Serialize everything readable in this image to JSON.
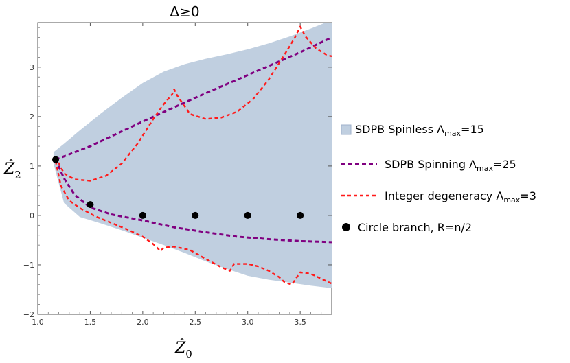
{
  "chart_data": {
    "type": "line",
    "title": "Δ≥0",
    "xlabel": "Ẑ",
    "xlabel_sub": "0",
    "ylabel": "Ẑ",
    "ylabel_sub": "2",
    "xlim": [
      1.0,
      3.8
    ],
    "ylim": [
      -2,
      3.9
    ],
    "x_ticks": [
      1.0,
      1.5,
      2.0,
      2.5,
      3.0,
      3.5
    ],
    "x_tick_labels": [
      "1.0",
      "1.5",
      "2.0",
      "2.5",
      "3.0",
      "3.5"
    ],
    "y_ticks": [
      -2,
      -1,
      0,
      1,
      2,
      3
    ],
    "y_tick_labels": [
      "−2",
      "−1",
      "0",
      "1",
      "2",
      "3"
    ],
    "legend_position": "right",
    "colors": {
      "region": "#c0cfe0",
      "spinning": "#800080",
      "integer": "#ff1a1a",
      "circle": "#000000"
    },
    "series": [
      {
        "key": "spinless",
        "kind": "area",
        "name": "SDPB Spinless Λ",
        "name_sub": "max",
        "name_suffix": "=15",
        "x": [
          1.15,
          1.25,
          1.4,
          1.6,
          1.8,
          2.0,
          2.2,
          2.4,
          2.6,
          2.8,
          3.0,
          3.2,
          3.4,
          3.6,
          3.8,
          3.8,
          3.6,
          3.4,
          3.2,
          3.0,
          2.8,
          2.6,
          2.4,
          2.2,
          2.0,
          1.8,
          1.6,
          1.4,
          1.25,
          1.15
        ],
        "y": [
          1.28,
          1.45,
          1.72,
          2.06,
          2.38,
          2.68,
          2.91,
          3.06,
          3.17,
          3.26,
          3.36,
          3.48,
          3.62,
          3.78,
          3.95,
          -1.47,
          -1.42,
          -1.36,
          -1.3,
          -1.22,
          -1.08,
          -0.93,
          -0.76,
          -0.6,
          -0.45,
          -0.3,
          -0.16,
          -0.03,
          0.25,
          1.05
        ]
      },
      {
        "key": "spinning_upper",
        "kind": "line",
        "name": "SDPB Spinning Λ",
        "name_sub": "max",
        "name_suffix": "=25",
        "x": [
          1.17,
          1.5,
          2.0,
          2.5,
          3.0,
          3.5,
          3.8
        ],
        "y": [
          1.13,
          1.4,
          1.9,
          2.38,
          2.84,
          3.3,
          3.6
        ]
      },
      {
        "key": "spinning_lower",
        "kind": "line",
        "x": [
          1.17,
          1.25,
          1.35,
          1.5,
          1.7,
          2.0,
          2.3,
          2.6,
          2.9,
          3.2,
          3.5,
          3.8
        ],
        "y": [
          1.13,
          0.75,
          0.42,
          0.16,
          0.02,
          -0.1,
          -0.24,
          -0.34,
          -0.43,
          -0.48,
          -0.52,
          -0.54
        ]
      },
      {
        "key": "integer_upper",
        "kind": "line",
        "name": "Integer degeneracy Λ",
        "name_sub": "max",
        "name_suffix": "=3",
        "x": [
          1.17,
          1.25,
          1.35,
          1.5,
          1.65,
          1.8,
          1.95,
          2.1,
          2.2,
          2.28,
          2.3,
          2.33,
          2.45,
          2.6,
          2.75,
          2.9,
          3.05,
          3.2,
          3.35,
          3.45,
          3.5,
          3.55,
          3.65,
          3.75,
          3.8
        ],
        "y": [
          1.18,
          0.85,
          0.73,
          0.7,
          0.8,
          1.05,
          1.45,
          1.95,
          2.25,
          2.45,
          2.55,
          2.42,
          2.05,
          1.95,
          1.98,
          2.1,
          2.35,
          2.75,
          3.25,
          3.6,
          3.82,
          3.62,
          3.38,
          3.25,
          3.22
        ]
      },
      {
        "key": "integer_lower",
        "kind": "line",
        "x": [
          1.17,
          1.22,
          1.3,
          1.4,
          1.55,
          1.7,
          1.85,
          2.0,
          2.1,
          2.17,
          2.2,
          2.3,
          2.45,
          2.6,
          2.75,
          2.83,
          2.87,
          3.0,
          3.1,
          3.2,
          3.3,
          3.35,
          3.42,
          3.5,
          3.6,
          3.8
        ],
        "y": [
          1.1,
          0.6,
          0.3,
          0.15,
          -0.02,
          -0.15,
          -0.28,
          -0.43,
          -0.58,
          -0.72,
          -0.65,
          -0.63,
          -0.7,
          -0.88,
          -1.05,
          -1.12,
          -0.98,
          -0.98,
          -1.03,
          -1.12,
          -1.25,
          -1.35,
          -1.4,
          -1.15,
          -1.18,
          -1.38
        ]
      },
      {
        "key": "circle",
        "kind": "scatter",
        "name": "Circle branch, R=n/2",
        "x": [
          1.17,
          1.5,
          2.0,
          2.5,
          3.0,
          3.5
        ],
        "y": [
          1.13,
          0.22,
          0.0,
          0.0,
          0.0,
          0.0
        ]
      }
    ]
  }
}
